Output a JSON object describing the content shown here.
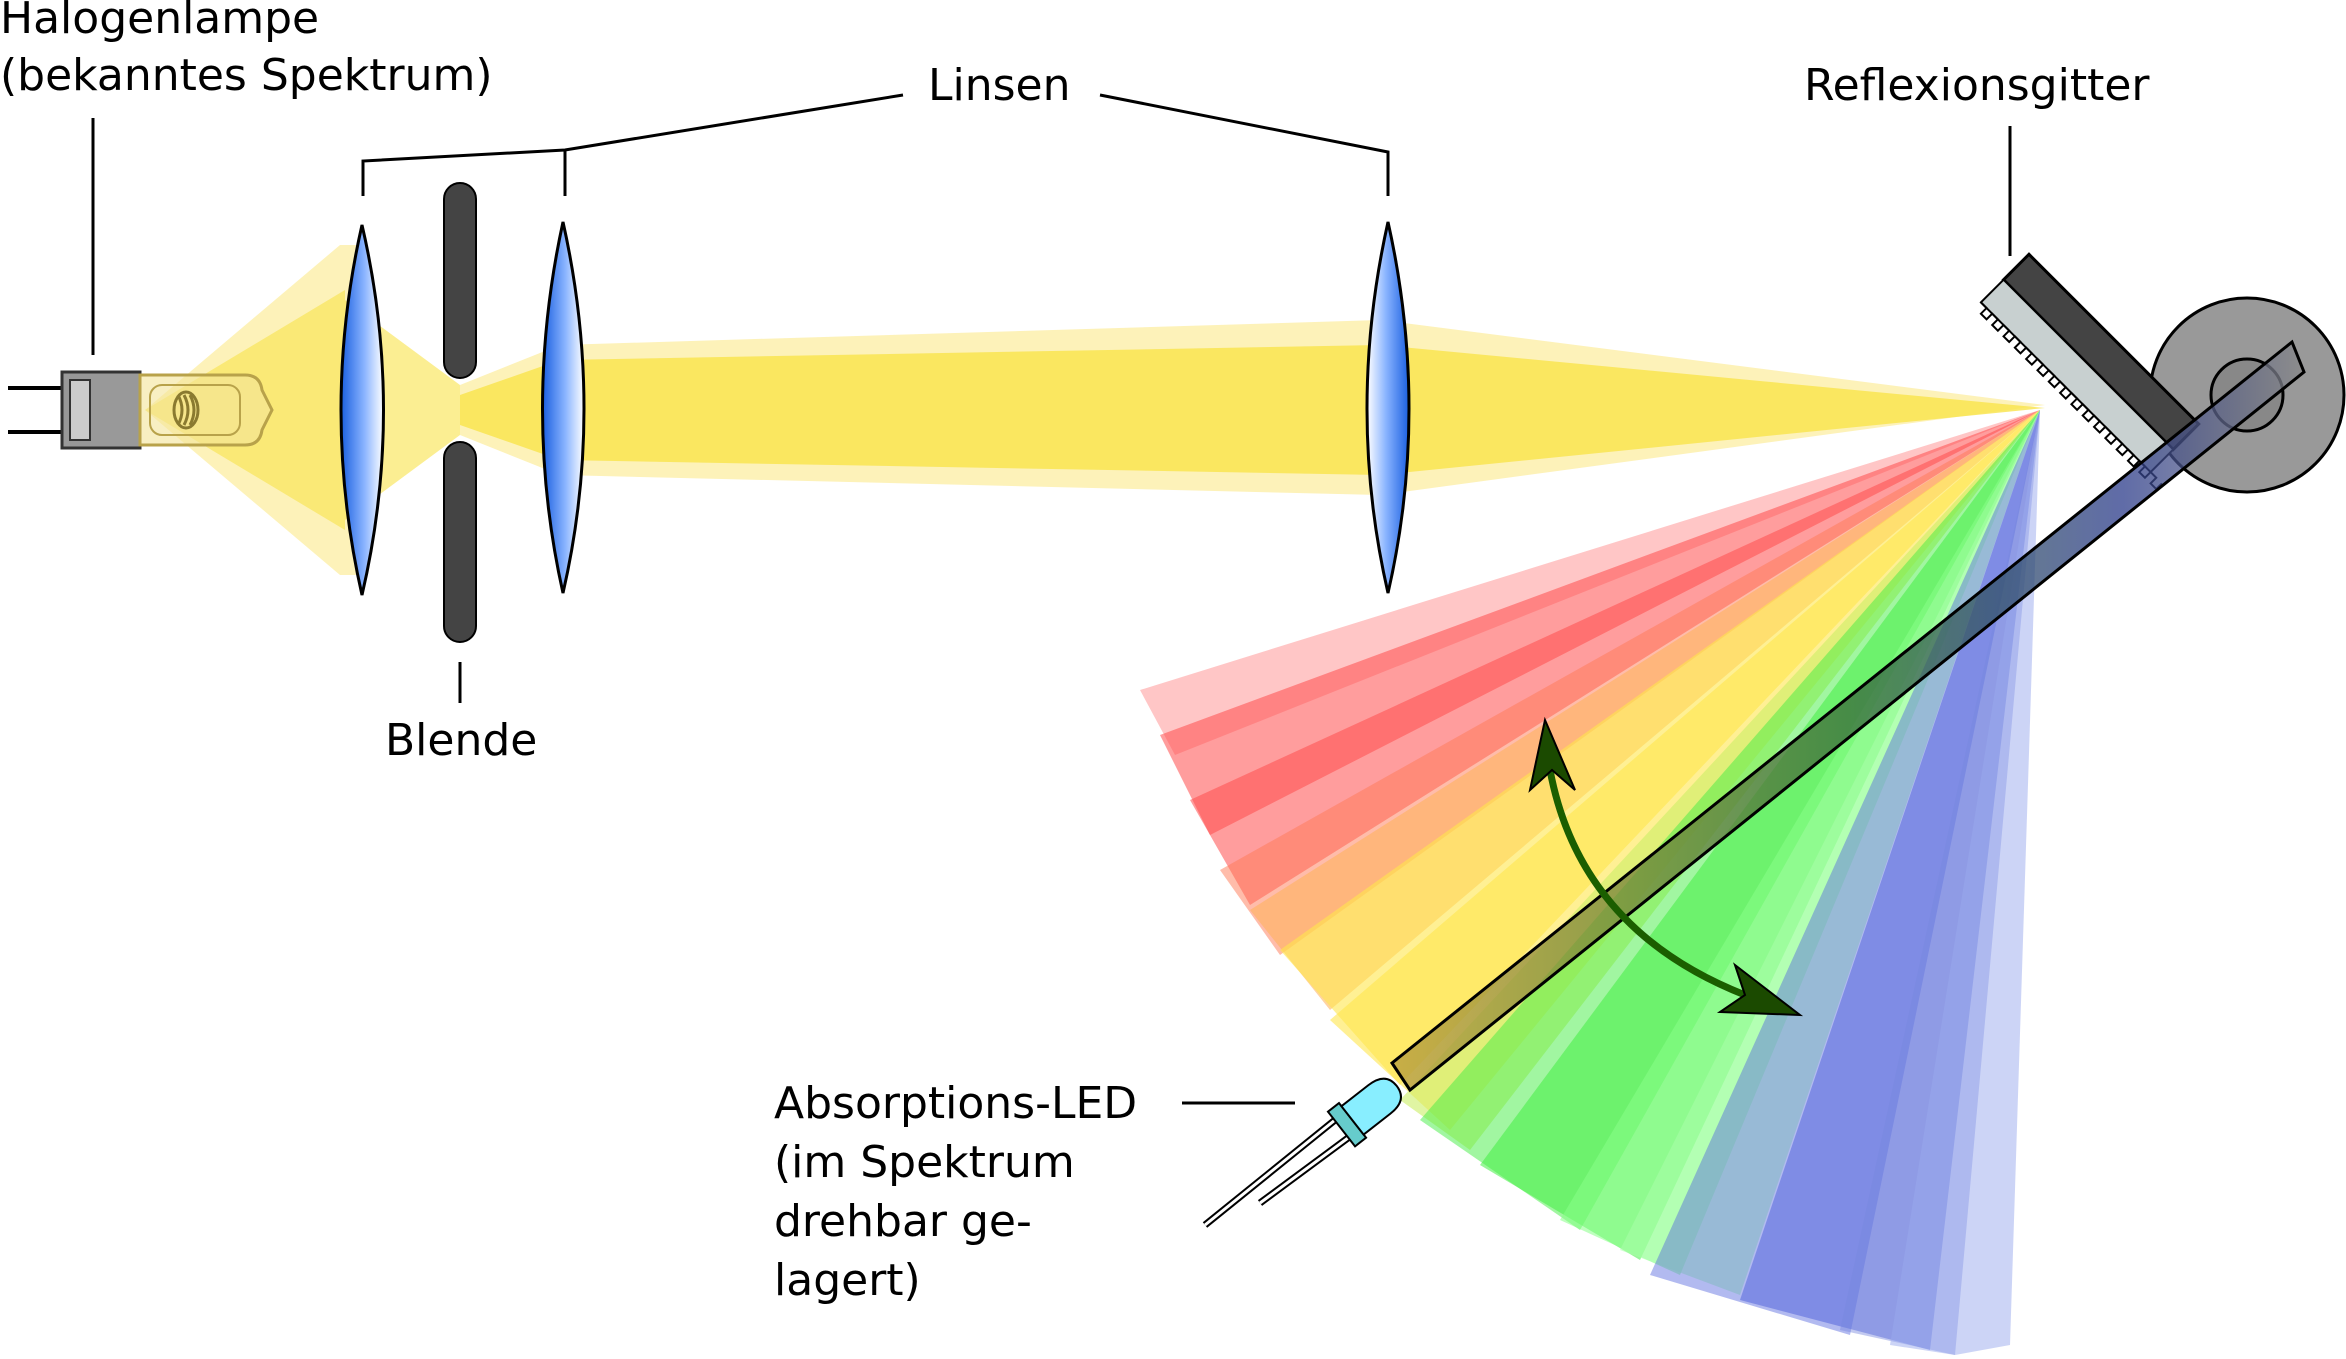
{
  "labels": {
    "lamp_line1": "Halogenlampe",
    "lamp_line2": "(bekanntes Spektrum)",
    "lenses": "Linsen",
    "aperture": "Blende",
    "grating": "Reflexionsgitter",
    "led_line1": "Absorptions-LED",
    "led_line2": "(im Spektrum",
    "led_line3": "drehbar ge-",
    "led_line4": "lagert)"
  },
  "colors": {
    "beam_yellow": "#f9e34a",
    "red": "#ff4d4d",
    "orange": "#ffaa55",
    "yellow": "#ffe64d",
    "green": "#44ee44",
    "blue": "#5566dd",
    "lens_blue": "#2266ee",
    "dark": "#444444",
    "arm": "#888888",
    "arrow": "#1b5e00",
    "led_cyan": "#88eeff"
  }
}
